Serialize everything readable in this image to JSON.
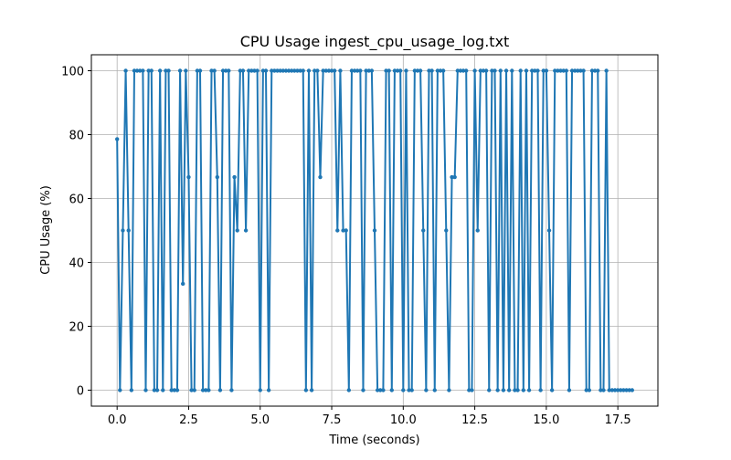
{
  "chart_data": {
    "type": "line",
    "title": "CPU Usage ingest_cpu_usage_log.txt",
    "xlabel": "Time (seconds)",
    "ylabel": "CPU Usage (%)",
    "x": [
      0,
      0.1,
      0.2,
      0.3,
      0.4,
      0.5,
      0.6,
      0.7,
      0.8,
      0.9,
      1,
      1.1,
      1.2,
      1.3,
      1.4,
      1.5,
      1.6,
      1.7,
      1.8,
      1.9,
      2,
      2.1,
      2.2,
      2.3,
      2.4,
      2.5,
      2.6,
      2.7,
      2.8,
      2.9,
      3,
      3.1,
      3.2,
      3.3,
      3.4,
      3.5,
      3.6,
      3.7,
      3.8,
      3.9,
      4,
      4.1,
      4.2,
      4.3,
      4.4,
      4.5,
      4.6,
      4.7,
      4.8,
      4.9,
      5,
      5.1,
      5.2,
      5.3,
      5.4,
      5.5,
      5.6,
      5.7,
      5.8,
      5.9,
      6,
      6.1,
      6.2,
      6.3,
      6.4,
      6.5,
      6.6,
      6.7,
      6.8,
      6.9,
      7,
      7.1,
      7.2,
      7.3,
      7.4,
      7.5,
      7.6,
      7.7,
      7.8,
      7.9,
      8,
      8.1,
      8.2,
      8.3,
      8.4,
      8.5,
      8.6,
      8.7,
      8.8,
      8.9,
      9,
      9.1,
      9.2,
      9.3,
      9.4,
      9.5,
      9.6,
      9.7,
      9.8,
      9.9,
      10,
      10.1,
      10.2,
      10.3,
      10.4,
      10.5,
      10.6,
      10.7,
      10.8,
      10.9,
      11,
      11.1,
      11.2,
      11.3,
      11.4,
      11.5,
      11.6,
      11.7,
      11.8,
      11.9,
      12,
      12.1,
      12.2,
      12.3,
      12.4,
      12.5,
      12.6,
      12.7,
      12.8,
      12.9,
      13,
      13.1,
      13.2,
      13.3,
      13.4,
      13.5,
      13.6,
      13.7,
      13.8,
      13.9,
      14,
      14.1,
      14.2,
      14.3,
      14.4,
      14.5,
      14.6,
      14.7,
      14.8,
      14.9,
      15,
      15.1,
      15.2,
      15.3,
      15.4,
      15.5,
      15.6,
      15.7,
      15.8,
      15.9,
      16,
      16.1,
      16.2,
      16.3,
      16.4,
      16.5,
      16.6,
      16.7,
      16.8,
      16.9,
      17,
      17.1,
      17.2,
      17.3,
      17.4,
      17.5,
      17.6,
      17.7,
      17.8,
      17.9,
      18
    ],
    "series": [
      {
        "color": "#1f77b4",
        "values": [
          78.6,
          0,
          50,
          100,
          50,
          0,
          100,
          100,
          100,
          100,
          0,
          100,
          100,
          0,
          0,
          100,
          0,
          100,
          100,
          0,
          0,
          0,
          100,
          33.3,
          100,
          66.7,
          0,
          0,
          100,
          100,
          0,
          0,
          0,
          100,
          100,
          66.7,
          0,
          100,
          100,
          100,
          0,
          66.7,
          50,
          100,
          100,
          50,
          100,
          100,
          100,
          100,
          0,
          100,
          100,
          0,
          100,
          100,
          100,
          100,
          100,
          100,
          100,
          100,
          100,
          100,
          100,
          100,
          0,
          100,
          0,
          100,
          100,
          66.7,
          100,
          100,
          100,
          100,
          100,
          50,
          100,
          50,
          50,
          0,
          100,
          100,
          100,
          100,
          0,
          100,
          100,
          100,
          50,
          0,
          0,
          0,
          100,
          100,
          0,
          100,
          100,
          100,
          0,
          100,
          0,
          0,
          100,
          100,
          100,
          50,
          0,
          100,
          100,
          0,
          100,
          100,
          100,
          50,
          0,
          66.7,
          66.7,
          100,
          100,
          100,
          100,
          0,
          0,
          100,
          50,
          100,
          100,
          100,
          0,
          100,
          100,
          0,
          100,
          0,
          100,
          0,
          100,
          0,
          0,
          100,
          0,
          100,
          0,
          100,
          100,
          100,
          0,
          100,
          100,
          50,
          0,
          100,
          100,
          100,
          100,
          100,
          0,
          100,
          100,
          100,
          100,
          100,
          0,
          0,
          100,
          100,
          100,
          0,
          0,
          100,
          0,
          0,
          0,
          0,
          0,
          0,
          0,
          0,
          0
        ]
      }
    ],
    "xlim": [
      -0.9,
      18.9
    ],
    "ylim": [
      -5,
      105
    ],
    "xticks": [
      {
        "value": 0,
        "label": "0.0"
      },
      {
        "value": 2.5,
        "label": "2.5"
      },
      {
        "value": 5,
        "label": "5.0"
      },
      {
        "value": 7.5,
        "label": "7.5"
      },
      {
        "value": 10,
        "label": "10.0"
      },
      {
        "value": 12.5,
        "label": "12.5"
      },
      {
        "value": 15,
        "label": "15.0"
      },
      {
        "value": 17.5,
        "label": "17.5"
      }
    ],
    "yticks": [
      0,
      20,
      40,
      60,
      80,
      100
    ],
    "grid": true
  }
}
